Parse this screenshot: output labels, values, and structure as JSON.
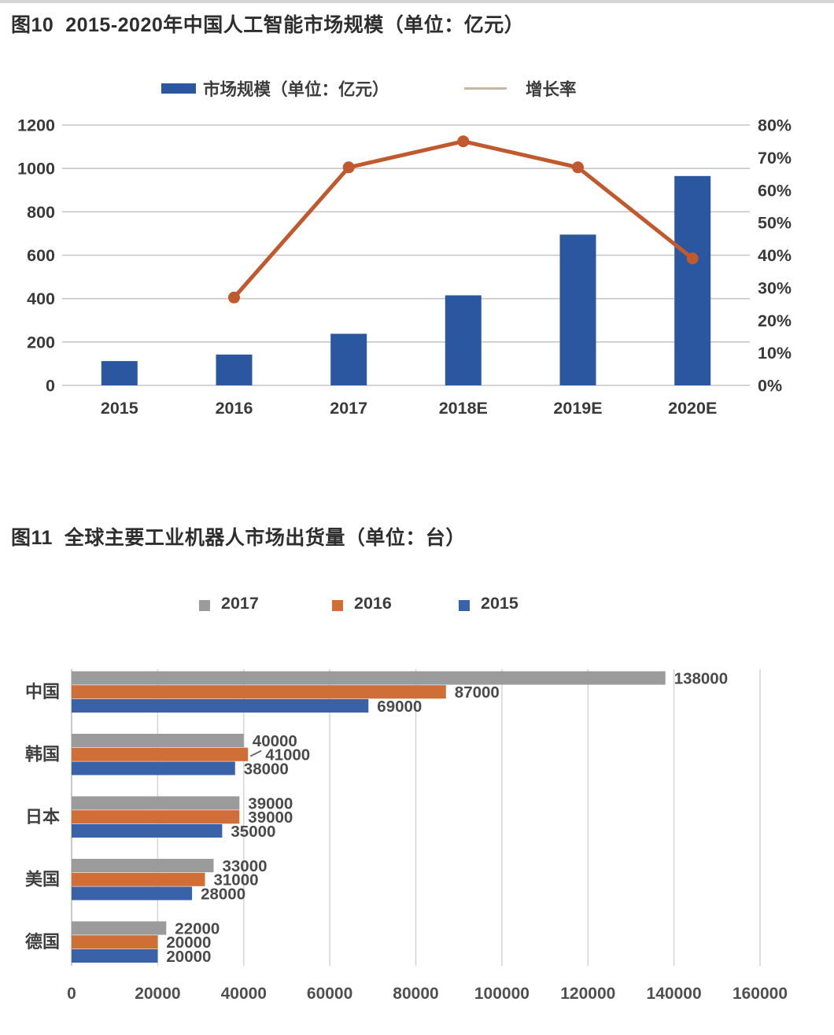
{
  "fig10": {
    "title": "图10  2015-2020年中国人工智能市场规模（单位：亿元）",
    "legend": {
      "market": "市场规模（单位：亿元）",
      "growth": "增长率",
      "line_swatch_color": "#c8b7a2"
    }
  },
  "fig11": {
    "title": "图11  全球主要工业机器人市场出货量（单位：台）"
  },
  "chart_data": [
    {
      "type": "bar",
      "subtype": "bar+line combo",
      "title": "2015-2020年中国人工智能市场规模（单位：亿元）",
      "categories": [
        "2015",
        "2016",
        "2017",
        "2018E",
        "2019E",
        "2020E"
      ],
      "series": [
        {
          "name": "市场规模（单位：亿元）",
          "kind": "bar",
          "axis": "left",
          "color": "#2b57a0",
          "values": [
            112,
            142,
            238,
            415,
            695,
            965
          ]
        },
        {
          "name": "增长率",
          "kind": "line",
          "axis": "right",
          "color": "#c05a2e",
          "values": [
            null,
            27,
            67,
            75,
            67,
            39
          ]
        }
      ],
      "left_axis": {
        "min": 0,
        "max": 1200,
        "step": 200,
        "suffix": ""
      },
      "right_axis": {
        "min": 0,
        "max": 80,
        "step": 10,
        "suffix": "%"
      },
      "grid": "horizontal",
      "gridline_color": "#c7c7c7",
      "legend_position": "top"
    },
    {
      "type": "bar",
      "subtype": "horizontal grouped bar",
      "title": "全球主要工业机器人市场出货量（单位：台）",
      "categories": [
        "中国",
        "韩国",
        "日本",
        "美国",
        "德国"
      ],
      "series": [
        {
          "name": "2017",
          "color": "#9b9b9b",
          "values": [
            138000,
            40000,
            39000,
            33000,
            22000
          ]
        },
        {
          "name": "2016",
          "color": "#d06e38",
          "values": [
            87000,
            41000,
            39000,
            31000,
            20000
          ]
        },
        {
          "name": "2015",
          "color": "#3a62a8",
          "values": [
            69000,
            38000,
            35000,
            28000,
            20000
          ]
        }
      ],
      "x_axis": {
        "min": 0,
        "max": 160000,
        "step": 20000
      },
      "value_labels": true,
      "leader_lines": [
        {
          "category": "韩国",
          "series": "2016"
        }
      ],
      "grid": "vertical",
      "gridline_color": "#d4d4d4",
      "legend_position": "top"
    }
  ]
}
